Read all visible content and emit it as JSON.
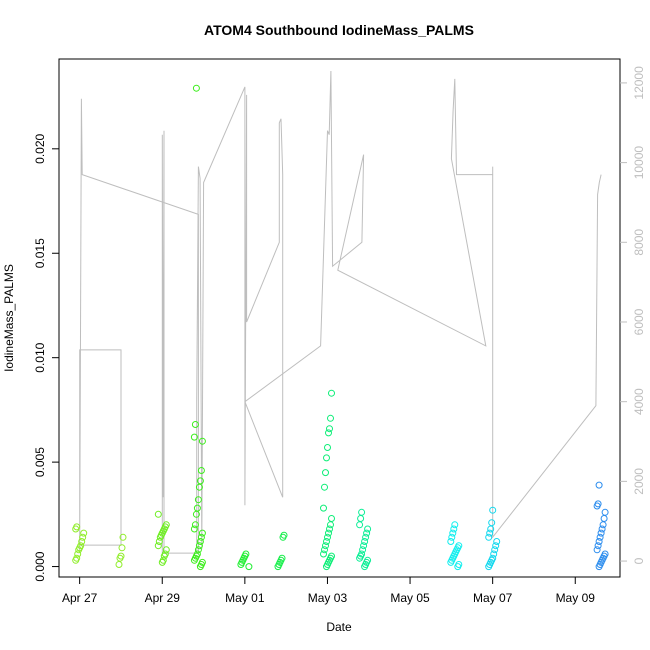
{
  "chart_data": {
    "type": "scatter",
    "title": "ATOM4 Southbound IodineMass_PALMS",
    "xlabel": "Date",
    "ylabel": "IodineMass_PALMS",
    "x_axis": {
      "type": "date",
      "ticks": [
        {
          "label": "Apr 27",
          "value": "2018-04-27"
        },
        {
          "label": "Apr 29",
          "value": "2018-04-29"
        },
        {
          "label": "May 01",
          "value": "2018-05-01"
        },
        {
          "label": "May 03",
          "value": "2018-05-03"
        },
        {
          "label": "May 05",
          "value": "2018-05-05"
        },
        {
          "label": "May 07",
          "value": "2018-05-07"
        },
        {
          "label": "May 09",
          "value": "2018-05-09"
        }
      ],
      "range": [
        "2018-04-26 12:00",
        "2018-05-10 02:00"
      ]
    },
    "y_axis": {
      "ticks": [
        "0.000",
        "0.005",
        "0.010",
        "0.015",
        "0.020"
      ],
      "range": [
        -0.0005,
        0.0243
      ]
    },
    "y_axis_right": {
      "ticks": [
        "0",
        "2000",
        "4000",
        "6000",
        "8000",
        "10000",
        "12000"
      ],
      "range": [
        -400,
        12600
      ],
      "color": "#bebebe"
    },
    "series": [
      {
        "role": "points",
        "marker": "open-circle",
        "flights": [
          {
            "date": "2018-04-27 00:00",
            "color": "#90ee2a",
            "values": [
              0.0003,
              0.0004,
              0.0006,
              0.0008,
              0.0009,
              0.001,
              0.0012,
              0.0014,
              0.0016,
              0.0018,
              0.0019
            ]
          },
          {
            "date": "2018-04-28 00:00",
            "color": "#90ee2a",
            "values": [
              0.0001,
              0.0004,
              0.0005,
              0.0009,
              0.0014
            ]
          },
          {
            "date": "2018-04-29 00:00",
            "color": "#6eee22",
            "values": [
              0.0002,
              0.0003,
              0.0005,
              0.0006,
              0.0008,
              0.001,
              0.0012,
              0.0014,
              0.0015,
              0.0016,
              0.0017,
              0.0018,
              0.0019,
              0.002,
              0.0025
            ]
          },
          {
            "date": "2018-04-29 21:00",
            "color": "#3cee1c",
            "values": [
              0.0,
              0.0001,
              0.0002,
              0.0003,
              0.0004,
              0.0005,
              0.0006,
              0.0008,
              0.001,
              0.0012,
              0.0014,
              0.0016,
              0.0018,
              0.002,
              0.0025,
              0.0028,
              0.0032,
              0.0038,
              0.0041,
              0.0046,
              0.006,
              0.0062,
              0.0068,
              0.0229
            ]
          },
          {
            "date": "2018-05-01 00:00",
            "color": "#1eee30",
            "values": [
              0.0,
              0.0001,
              0.0002,
              0.0003,
              0.0004,
              0.0005,
              0.0006
            ]
          },
          {
            "date": "2018-05-01 21:00",
            "color": "#12ee46",
            "values": [
              0.0,
              0.0001,
              0.0002,
              0.0003,
              0.0004,
              0.0014,
              0.0015
            ]
          },
          {
            "date": "2018-05-03 00:00",
            "color": "#0eee78",
            "values": [
              0.0,
              0.0001,
              0.0002,
              0.0003,
              0.0004,
              0.0005,
              0.0006,
              0.0008,
              0.001,
              0.0012,
              0.0014,
              0.0016,
              0.0018,
              0.002,
              0.0023,
              0.0028,
              0.0038,
              0.0045,
              0.0052,
              0.0057,
              0.0064,
              0.0066,
              0.0071,
              0.0083
            ]
          },
          {
            "date": "2018-05-03 21:00",
            "color": "#0cee96",
            "values": [
              0.0,
              0.0001,
              0.0002,
              0.0003,
              0.0004,
              0.0005,
              0.0006,
              0.0008,
              0.001,
              0.0012,
              0.0014,
              0.0016,
              0.0018,
              0.002,
              0.0023,
              0.0026
            ]
          },
          {
            "date": "2018-05-06 02:00",
            "color": "#10eeee",
            "values": [
              0.0,
              0.0001,
              0.0002,
              0.0003,
              0.0004,
              0.0005,
              0.0006,
              0.0007,
              0.0008,
              0.0009,
              0.001,
              0.0012,
              0.0014,
              0.0016,
              0.0018,
              0.002
            ]
          },
          {
            "date": "2018-05-07 00:00",
            "color": "#14d8ee",
            "values": [
              0.0,
              0.0001,
              0.0002,
              0.0003,
              0.0004,
              0.0006,
              0.0008,
              0.001,
              0.0012,
              0.0014,
              0.0016,
              0.0018,
              0.0021,
              0.0027
            ]
          },
          {
            "date": "2018-05-09 15:00",
            "color": "#2a8cee",
            "values": [
              0.0,
              0.0001,
              0.0002,
              0.0003,
              0.0004,
              0.0005,
              0.0006,
              0.0008,
              0.001,
              0.0012,
              0.0014,
              0.0016,
              0.0018,
              0.002,
              0.0023,
              0.0026,
              0.0029,
              0.003,
              0.0039
            ]
          }
        ]
      },
      {
        "role": "altitude-trace",
        "axis": "right",
        "color": "#bebebe",
        "path": [
          [
            "2018-04-27 00:00",
            200
          ],
          [
            "2018-04-27 00:00",
            5300
          ],
          [
            "2018-04-27 12:00",
            5300
          ],
          [
            "2018-04-27 12:00",
            5300
          ],
          [
            "2018-04-28 00:00",
            5300
          ],
          [
            "2018-04-28 00:00",
            400
          ],
          [
            "2018-04-27 00:00",
            400
          ],
          [
            "2018-04-27 01:00",
            11600
          ],
          [
            "2018-04-27 01:30",
            9700
          ],
          [
            "2018-04-29 21:00",
            8700
          ],
          [
            "2018-04-29 21:00",
            200
          ],
          [
            "2018-04-29 00:00",
            200
          ],
          [
            "2018-04-29 00:00",
            10700
          ],
          [
            "2018-04-29 00:30",
            1600
          ],
          [
            "2018-04-29 01:00",
            10800
          ],
          [
            "2018-04-29 01:00",
            200
          ],
          [
            "2018-04-29 20:00",
            200
          ],
          [
            "2018-04-29 20:00",
            4000
          ],
          [
            "2018-04-29 21:00",
            9900
          ],
          [
            "2018-04-29 22:00",
            9600
          ],
          [
            "2018-04-29 23:00",
            300
          ],
          [
            "2018-04-30 00:00",
            9500
          ],
          [
            "2018-05-01 00:00",
            11900
          ],
          [
            "2018-05-01 00:00",
            1400
          ],
          [
            "2018-05-01 01:00",
            11700
          ],
          [
            "2018-05-01 01:00",
            6000
          ],
          [
            "2018-05-01 20:00",
            8000
          ],
          [
            "2018-05-01 20:00",
            11000
          ],
          [
            "2018-05-01 21:00",
            11100
          ],
          [
            "2018-05-01 22:00",
            9700
          ],
          [
            "2018-05-01 22:00",
            1600
          ],
          [
            "2018-05-01 00:00",
            4000
          ],
          [
            "2018-05-02 20:00",
            5400
          ],
          [
            "2018-05-03 00:00",
            10800
          ],
          [
            "2018-05-03 01:00",
            10700
          ],
          [
            "2018-05-03 02:00",
            12300
          ],
          [
            "2018-05-03 03:00",
            7400
          ],
          [
            "2018-05-03 20:00",
            8000
          ],
          [
            "2018-05-03 21:00",
            10200
          ],
          [
            "2018-05-03 06:00",
            7300
          ],
          [
            "2018-05-06 20:00",
            5400
          ],
          [
            "2018-05-06 00:00",
            10100
          ],
          [
            "2018-05-06 01:00",
            11300
          ],
          [
            "2018-05-06 02:00",
            12100
          ],
          [
            "2018-05-06 03:00",
            9700
          ],
          [
            "2018-05-07 00:00",
            9700
          ],
          [
            "2018-05-07 00:00",
            9900
          ],
          [
            "2018-05-07 00:00",
            600
          ],
          [
            "2018-05-09 12:00",
            3900
          ],
          [
            "2018-05-09 13:00",
            9200
          ],
          [
            "2018-05-09 14:00",
            9500
          ],
          [
            "2018-05-09 15:00",
            9700
          ]
        ]
      }
    ],
    "grid": false,
    "legend": "none"
  }
}
